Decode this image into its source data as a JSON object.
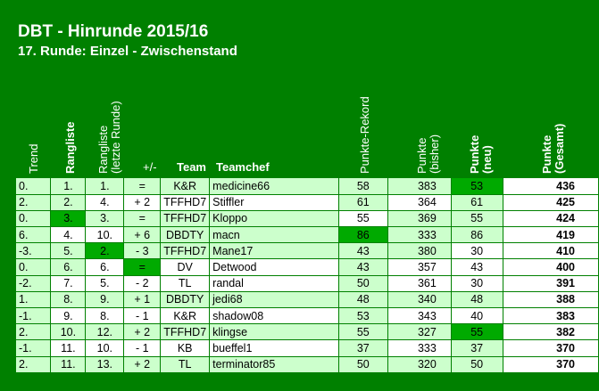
{
  "title": "DBT - Hinrunde 2015/16",
  "subtitle": "17. Runde: Einzel - Zwischenstand",
  "headers": {
    "trend": "Trend",
    "rangliste": "Rangliste",
    "rangliste_prev": "Rangliste",
    "rangliste_prev_sub": "(letzte Runde)",
    "delta": "+/-",
    "team": "Team",
    "teamchef": "Teamchef",
    "rekord": "Punkte-Rekord",
    "bisher": "Punkte",
    "bisher_sub": "(bisher)",
    "neu": "Punkte",
    "neu_sub": "(neu)",
    "gesamt": "Punkte",
    "gesamt_sub": "(Gesamt)"
  },
  "rows": [
    {
      "trend": "0.",
      "rank": "1.",
      "prev": "1.",
      "delta": "=",
      "team": "K&R",
      "chef": "medicine66",
      "rekord": "58",
      "bisher": "383",
      "neu": "53",
      "gesamt": "436"
    },
    {
      "trend": "2.",
      "rank": "2.",
      "prev": "4.",
      "delta": "+ 2",
      "team": "TFFHD7",
      "chef": "Stiffler",
      "rekord": "61",
      "bisher": "364",
      "neu": "61",
      "gesamt": "425"
    },
    {
      "trend": "0.",
      "rank": "3.",
      "prev": "3.",
      "delta": "=",
      "team": "TFFHD7",
      "chef": "Kloppo",
      "rekord": "55",
      "bisher": "369",
      "neu": "55",
      "gesamt": "424"
    },
    {
      "trend": "6.",
      "rank": "4.",
      "prev": "10.",
      "delta": "+ 6",
      "team": "DBDTY",
      "chef": "macn",
      "rekord": "86",
      "bisher": "333",
      "neu": "86",
      "gesamt": "419"
    },
    {
      "trend": "-3.",
      "rank": "5.",
      "prev": "2.",
      "delta": "- 3",
      "team": "TFFHD7",
      "chef": "Mane17",
      "rekord": "43",
      "bisher": "380",
      "neu": "30",
      "gesamt": "410"
    },
    {
      "trend": "0.",
      "rank": "6.",
      "prev": "6.",
      "delta": "=",
      "team": "DV",
      "chef": "Detwood",
      "rekord": "43",
      "bisher": "357",
      "neu": "43",
      "gesamt": "400"
    },
    {
      "trend": "-2.",
      "rank": "7.",
      "prev": "5.",
      "delta": "- 2",
      "team": "TL",
      "chef": "randal",
      "rekord": "50",
      "bisher": "361",
      "neu": "30",
      "gesamt": "391"
    },
    {
      "trend": "1.",
      "rank": "8.",
      "prev": "9.",
      "delta": "+ 1",
      "team": "DBDTY",
      "chef": "jedi68",
      "rekord": "48",
      "bisher": "340",
      "neu": "48",
      "gesamt": "388"
    },
    {
      "trend": "-1.",
      "rank": "9.",
      "prev": "8.",
      "delta": "- 1",
      "team": "K&R",
      "chef": "shadow08",
      "rekord": "53",
      "bisher": "343",
      "neu": "40",
      "gesamt": "383"
    },
    {
      "trend": "2.",
      "rank": "10.",
      "prev": "12.",
      "delta": "+ 2",
      "team": "TFFHD7",
      "chef": "klingse",
      "rekord": "55",
      "bisher": "327",
      "neu": "55",
      "gesamt": "382"
    },
    {
      "trend": "-1.",
      "rank": "11.",
      "prev": "10.",
      "delta": "- 1",
      "team": "KB",
      "chef": "bueffel1",
      "rekord": "37",
      "bisher": "333",
      "neu": "37",
      "gesamt": "370"
    },
    {
      "trend": "2.",
      "rank": "11.",
      "prev": "13.",
      "delta": "+ 2",
      "team": "TL",
      "chef": "terminator85",
      "rekord": "50",
      "bisher": "320",
      "neu": "50",
      "gesamt": "370"
    }
  ],
  "colors": {
    "page_bg": "#008000",
    "light_green": "#ccffcc",
    "white": "#ffffff",
    "mid_green": "#00aa00"
  }
}
